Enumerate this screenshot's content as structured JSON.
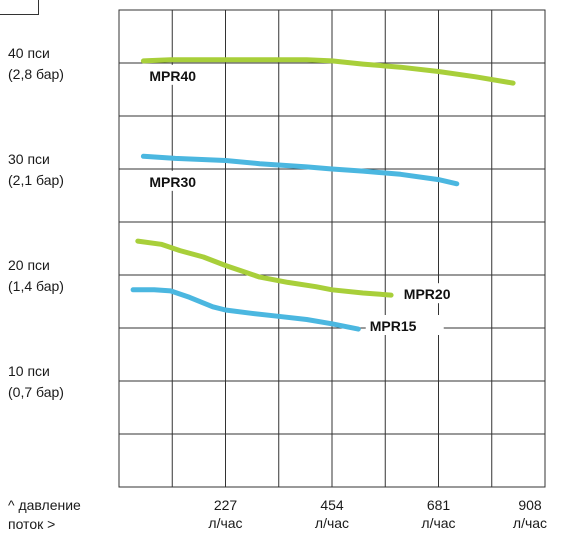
{
  "chart_data": {
    "type": "line",
    "ylabels": [
      {
        "line1": "40 пси",
        "line2": "(2,8 бар)",
        "value": 40
      },
      {
        "line1": "30 пси",
        "line2": "(2,1 бар)",
        "value": 30
      },
      {
        "line1": "20 пси",
        "line2": "(1,4 бар)",
        "value": 20
      },
      {
        "line1": "10 пси",
        "line2": "(0,7 бар)",
        "value": 10
      }
    ],
    "xticks": [
      {
        "value": "227",
        "unit": "л/час"
      },
      {
        "value": "454",
        "unit": "л/час"
      },
      {
        "value": "681",
        "unit": "л/час"
      },
      {
        "value": "908",
        "unit": "л/час"
      }
    ],
    "ylabel": "^ давление",
    "xlabel": "поток >",
    "xlim": [
      0,
      908
    ],
    "ylim": [
      0,
      45
    ],
    "series": [
      {
        "name": "MPR40",
        "color": "#a8cf3a",
        "x": [
          52,
          110,
          160,
          227,
          280,
          340,
          400,
          454,
          520,
          600,
          681,
          760,
          840
        ],
        "y": [
          40.2,
          40.3,
          40.3,
          40.3,
          40.3,
          40.3,
          40.3,
          40.2,
          39.9,
          39.6,
          39.2,
          38.7,
          38.1
        ]
      },
      {
        "name": "MPR30",
        "color": "#4bb7e0",
        "x": [
          52,
          120,
          227,
          300,
          400,
          454,
          520,
          600,
          681,
          720
        ],
        "y": [
          31.2,
          31.0,
          30.8,
          30.5,
          30.2,
          30.0,
          29.8,
          29.5,
          29.0,
          28.6
        ]
      },
      {
        "name": "MPR20",
        "color": "#a8cf3a",
        "x": [
          40,
          90,
          130,
          180,
          227,
          260,
          300,
          360,
          420,
          454,
          520,
          580
        ],
        "y": [
          23.2,
          22.9,
          22.3,
          21.7,
          20.9,
          20.4,
          19.8,
          19.3,
          18.9,
          18.6,
          18.3,
          18.1
        ]
      },
      {
        "name": "MPR15",
        "color": "#4bb7e0",
        "x": [
          30,
          75,
          110,
          150,
          200,
          227,
          280,
          340,
          400,
          454,
          510
        ],
        "y": [
          18.6,
          18.6,
          18.5,
          17.9,
          17.0,
          16.7,
          16.4,
          16.1,
          15.8,
          15.4,
          14.9
        ]
      }
    ],
    "grid": true,
    "legend": "inline labels next to lines"
  }
}
